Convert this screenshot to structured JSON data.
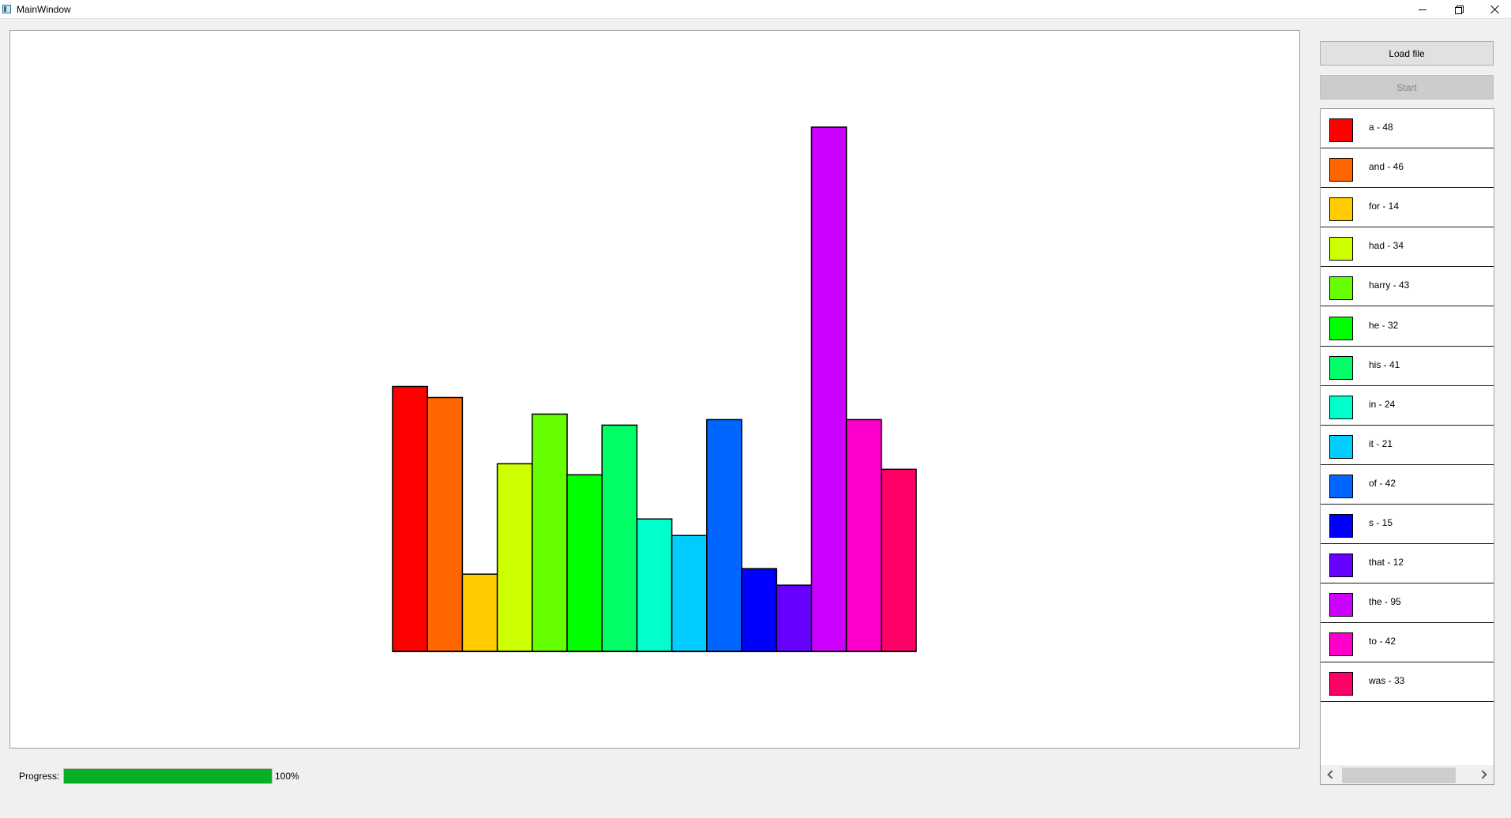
{
  "window": {
    "title": "MainWindow"
  },
  "toolbar": {
    "load_label": "Load file",
    "start_label": "Start"
  },
  "progress": {
    "label": "Progress:",
    "value": 100,
    "text": "100%",
    "color": "#06b025"
  },
  "legend": {
    "items": [
      {
        "label": "a - 48",
        "color": "#ff0000"
      },
      {
        "label": "and - 46",
        "color": "#ff6600"
      },
      {
        "label": "for - 14",
        "color": "#ffcc00"
      },
      {
        "label": "had - 34",
        "color": "#ccff00"
      },
      {
        "label": "harry - 43",
        "color": "#66ff00"
      },
      {
        "label": "he - 32",
        "color": "#00ff00"
      },
      {
        "label": "his - 41",
        "color": "#00ff66"
      },
      {
        "label": "in - 24",
        "color": "#00ffcc"
      },
      {
        "label": "it - 21",
        "color": "#00ccff"
      },
      {
        "label": "of - 42",
        "color": "#0066ff"
      },
      {
        "label": "s - 15",
        "color": "#0000ff"
      },
      {
        "label": "that - 12",
        "color": "#6600ff"
      },
      {
        "label": "the - 95",
        "color": "#cc00ff"
      },
      {
        "label": "to - 42",
        "color": "#ff00cc"
      },
      {
        "label": "was - 33",
        "color": "#ff0066"
      }
    ]
  },
  "chart_data": {
    "type": "bar",
    "title": "",
    "xlabel": "",
    "ylabel": "",
    "categories": [
      "a",
      "and",
      "for",
      "had",
      "harry",
      "he",
      "his",
      "in",
      "it",
      "of",
      "s",
      "that",
      "the",
      "to",
      "was"
    ],
    "values": [
      48,
      46,
      14,
      34,
      43,
      32,
      41,
      24,
      21,
      42,
      15,
      12,
      95,
      42,
      33
    ],
    "colors": [
      "#ff0000",
      "#ff6600",
      "#ffcc00",
      "#ccff00",
      "#66ff00",
      "#00ff00",
      "#00ff66",
      "#00ffcc",
      "#00ccff",
      "#0066ff",
      "#0000ff",
      "#6600ff",
      "#cc00ff",
      "#ff00cc",
      "#ff0066"
    ],
    "ylim": [
      0,
      95
    ],
    "grid": false,
    "legend": "right-panel"
  }
}
